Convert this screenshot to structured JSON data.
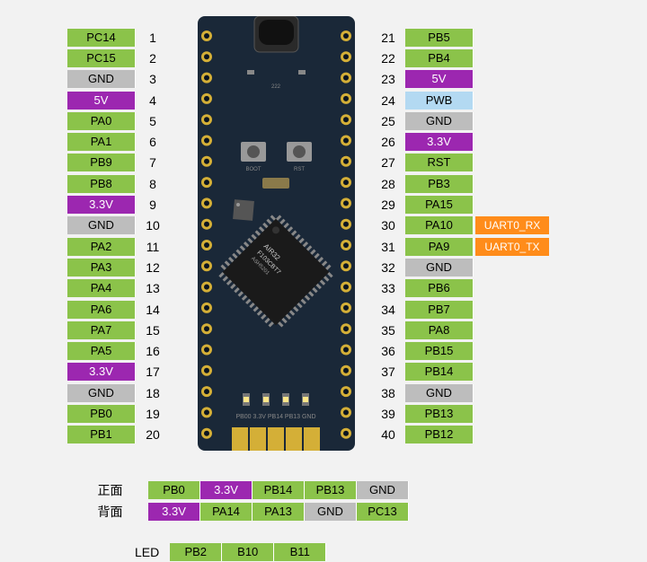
{
  "colors": {
    "green": "#8bc34a",
    "gray": "#bdbdbd",
    "purple": "#9c27b0",
    "lightblue": "#b3d9f2",
    "orange": "#ff8c1a",
    "darkboard": "#1a2838",
    "gold": "#d4af37",
    "white": "#ffffff",
    "black_text": "#000000",
    "white_text": "#ffffff"
  },
  "left_pins": [
    {
      "label": "PC14",
      "num": "1",
      "bg": "green",
      "fg": "black"
    },
    {
      "label": "PC15",
      "num": "2",
      "bg": "green",
      "fg": "black"
    },
    {
      "label": "GND",
      "num": "3",
      "bg": "gray",
      "fg": "black"
    },
    {
      "label": "5V",
      "num": "4",
      "bg": "purple",
      "fg": "white"
    },
    {
      "label": "PA0",
      "num": "5",
      "bg": "green",
      "fg": "black"
    },
    {
      "label": "PA1",
      "num": "6",
      "bg": "green",
      "fg": "black"
    },
    {
      "label": "PB9",
      "num": "7",
      "bg": "green",
      "fg": "black"
    },
    {
      "label": "PB8",
      "num": "8",
      "bg": "green",
      "fg": "black"
    },
    {
      "label": "3.3V",
      "num": "9",
      "bg": "purple",
      "fg": "white"
    },
    {
      "label": "GND",
      "num": "10",
      "bg": "gray",
      "fg": "black"
    },
    {
      "label": "PA2",
      "num": "11",
      "bg": "green",
      "fg": "black"
    },
    {
      "label": "PA3",
      "num": "12",
      "bg": "green",
      "fg": "black"
    },
    {
      "label": "PA4",
      "num": "13",
      "bg": "green",
      "fg": "black"
    },
    {
      "label": "PA6",
      "num": "14",
      "bg": "green",
      "fg": "black"
    },
    {
      "label": "PA7",
      "num": "15",
      "bg": "green",
      "fg": "black"
    },
    {
      "label": "PA5",
      "num": "16",
      "bg": "green",
      "fg": "black"
    },
    {
      "label": "3.3V",
      "num": "17",
      "bg": "purple",
      "fg": "white"
    },
    {
      "label": "GND",
      "num": "18",
      "bg": "gray",
      "fg": "black"
    },
    {
      "label": "PB0",
      "num": "19",
      "bg": "green",
      "fg": "black"
    },
    {
      "label": "PB1",
      "num": "20",
      "bg": "green",
      "fg": "black"
    }
  ],
  "right_pins": [
    {
      "label": "PB5",
      "num": "21",
      "bg": "green",
      "fg": "black"
    },
    {
      "label": "PB4",
      "num": "22",
      "bg": "green",
      "fg": "black"
    },
    {
      "label": "5V",
      "num": "23",
      "bg": "purple",
      "fg": "white"
    },
    {
      "label": "PWB",
      "num": "24",
      "bg": "lightblue",
      "fg": "black"
    },
    {
      "label": "GND",
      "num": "25",
      "bg": "gray",
      "fg": "black"
    },
    {
      "label": "3.3V",
      "num": "26",
      "bg": "purple",
      "fg": "white"
    },
    {
      "label": "RST",
      "num": "27",
      "bg": "green",
      "fg": "black"
    },
    {
      "label": "PB3",
      "num": "28",
      "bg": "green",
      "fg": "black"
    },
    {
      "label": "PA15",
      "num": "29",
      "bg": "green",
      "fg": "black"
    },
    {
      "label": "PA10",
      "num": "30",
      "bg": "green",
      "fg": "black",
      "extra": "UART0_RX"
    },
    {
      "label": "PA9",
      "num": "31",
      "bg": "green",
      "fg": "black",
      "extra": "UART0_TX"
    },
    {
      "label": "GND",
      "num": "32",
      "bg": "gray",
      "fg": "black"
    },
    {
      "label": "PB6",
      "num": "33",
      "bg": "green",
      "fg": "black"
    },
    {
      "label": "PB7",
      "num": "34",
      "bg": "green",
      "fg": "black"
    },
    {
      "label": "PA8",
      "num": "35",
      "bg": "green",
      "fg": "black"
    },
    {
      "label": "PB15",
      "num": "36",
      "bg": "green",
      "fg": "black"
    },
    {
      "label": "PB14",
      "num": "37",
      "bg": "green",
      "fg": "black"
    },
    {
      "label": "GND",
      "num": "38",
      "bg": "gray",
      "fg": "black"
    },
    {
      "label": "PB13",
      "num": "39",
      "bg": "green",
      "fg": "black"
    },
    {
      "label": "PB12",
      "num": "40",
      "bg": "green",
      "fg": "black"
    }
  ],
  "bottom_rows": [
    {
      "title": "正面",
      "pins": [
        {
          "label": "PB0",
          "bg": "green",
          "fg": "black"
        },
        {
          "label": "3.3V",
          "bg": "purple",
          "fg": "white"
        },
        {
          "label": "PB14",
          "bg": "green",
          "fg": "black"
        },
        {
          "label": "PB13",
          "bg": "green",
          "fg": "black"
        },
        {
          "label": "GND",
          "bg": "gray",
          "fg": "black"
        }
      ]
    },
    {
      "title": "背面",
      "pins": [
        {
          "label": "3.3V",
          "bg": "purple",
          "fg": "white"
        },
        {
          "label": "PA14",
          "bg": "green",
          "fg": "black"
        },
        {
          "label": "PA13",
          "bg": "green",
          "fg": "black"
        },
        {
          "label": "GND",
          "bg": "gray",
          "fg": "black"
        },
        {
          "label": "PC13",
          "bg": "green",
          "fg": "black"
        }
      ]
    }
  ],
  "led_row": {
    "title": "LED",
    "pins": [
      {
        "label": "PB2",
        "bg": "green",
        "fg": "black"
      },
      {
        "label": "B10",
        "bg": "green",
        "fg": "black"
      },
      {
        "label": "B11",
        "bg": "green",
        "fg": "black"
      }
    ]
  },
  "board_labels": {
    "boot": "BOOT",
    "rst": "RST",
    "chip1": "AIR32",
    "chip2": "F103CBT7",
    "chip3": "ASH5201",
    "bottom_pins": "PB00 3.3V PB14 PB13 GND"
  }
}
